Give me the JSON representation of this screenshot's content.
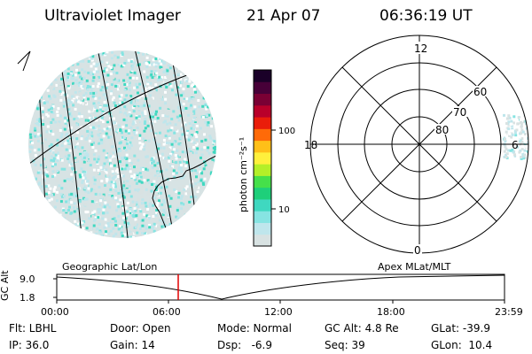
{
  "header": {
    "title": "Ultraviolet Imager",
    "date": "21 Apr 07",
    "time": "06:36:19 UT"
  },
  "colorbar": {
    "unit_label": "photon cm⁻²s⁻¹",
    "ticks": [
      "100",
      "10"
    ],
    "colors": [
      "#d8e2e2",
      "#bfe6ec",
      "#86e4e2",
      "#3fd8c0",
      "#1ecf7a",
      "#46e04a",
      "#b4ef28",
      "#fff03c",
      "#ffbf18",
      "#ff6a08",
      "#ea1d0a",
      "#b9002a",
      "#7a0034",
      "#470038",
      "#1a0028"
    ]
  },
  "polar": {
    "labels": {
      "noon": "12",
      "dusk": "18",
      "dawn": "6",
      "midnight": "0"
    },
    "lat_labels": [
      "80",
      "70",
      "60"
    ]
  },
  "timeline": {
    "left_label": "Geographic Lat/Lon",
    "right_label": "Apex MLat/MLT",
    "y_axis_label": "GC Alt",
    "y_ticks": [
      "9.0",
      "1.8"
    ],
    "x_ticks": [
      "00:00",
      "06:00",
      "12:00",
      "18:00",
      "23:59"
    ],
    "current_marker_color": "#e00000"
  },
  "status": {
    "filter": "Flt: LBHL",
    "ip": "IP: 36.0",
    "door": "Door: Open",
    "gain": "Gain: 14",
    "mode": "Mode: Normal",
    "dsp": "Dsp:   -6.9",
    "gc_alt": "GC Alt: 4.8 Re",
    "seq": "Seq: 39",
    "glat": "GLat: -39.9",
    "glon": "GLon:  10.4"
  }
}
